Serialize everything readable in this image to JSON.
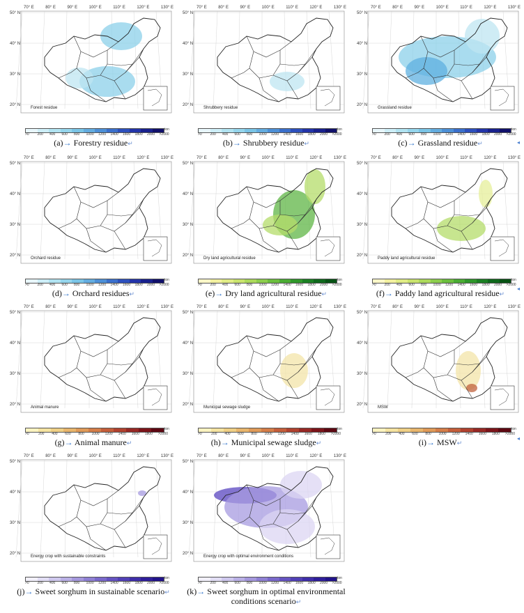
{
  "lon_labels": [
    "70° E",
    "80° E",
    "90° E",
    "100° E",
    "110° E",
    "120° E",
    "130° E"
  ],
  "lat_labels": [
    "50° N",
    "40° N",
    "30° N",
    "20° N"
  ],
  "unit": "ton",
  "ticks_blue": [
    ">0",
    "200",
    "400",
    "600",
    "800",
    "1000",
    "1200",
    "1400",
    "1600",
    "1800",
    "2000",
    ">2000"
  ],
  "ticks_green": [
    ">0",
    "200",
    "400",
    "600",
    "800",
    "1000",
    "1200",
    "1400",
    "1600",
    "1800",
    "2000",
    ">2000"
  ],
  "ticks_red": [
    ">0",
    "200",
    "400",
    "600",
    "800",
    "1000",
    "1200",
    "1400",
    "1600",
    "1800",
    ">2000"
  ],
  "colors_blue": [
    "#e8f6fb",
    "#cdeef7",
    "#b1e3f1",
    "#95d5ec",
    "#7ac4e6",
    "#63acdf",
    "#4c8fd6",
    "#3a6fcb",
    "#2c4fbc",
    "#2233a8",
    "#18208c",
    "#10106a"
  ],
  "colors_green": [
    "#fbf7c8",
    "#f2f0a0",
    "#e0ec86",
    "#c9e36e",
    "#acd95c",
    "#8ccd4d",
    "#6bbe3e",
    "#4aab33",
    "#2f962a",
    "#1b7f23",
    "#0f681c",
    "#075214"
  ],
  "colors_red": [
    "#fbf3c0",
    "#f5e3a0",
    "#efcf85",
    "#e8b56c",
    "#df9a58",
    "#d47d48",
    "#c45e3a",
    "#b0412e",
    "#972824",
    "#7c141a",
    "#5e0812"
  ],
  "colors_purple": [
    "#f2f0fb",
    "#e2def5",
    "#cfc8ee",
    "#bab0e6",
    "#a598dd",
    "#8f80d4",
    "#7a69cb",
    "#6553c1",
    "#5140b6",
    "#3f2ea9",
    "#2f1f9a",
    "#22138a"
  ],
  "panels": [
    {
      "label": "Forest residue",
      "caption": "(a)",
      "title": "Forestry residue",
      "palette": "blue"
    },
    {
      "label": "Shrubbery residue",
      "caption": "(b)",
      "title": "Shrubbery residue",
      "palette": "blue"
    },
    {
      "label": "Grassland residue",
      "caption": "(c)",
      "title": "Grassland residue",
      "palette": "blue"
    },
    {
      "label": "Orchard residue",
      "caption": "(d)",
      "title": "Orchard residues",
      "palette": "blue"
    },
    {
      "label": "Dry land agricultural residue",
      "caption": "(e)",
      "title": "Dry land agricultural residue",
      "palette": "green"
    },
    {
      "label": "Paddy land agricultural residue",
      "caption": "(f)",
      "title": "Paddy land agricultural residue",
      "palette": "green"
    },
    {
      "label": "Animal manure",
      "caption": "(g)",
      "title": "Animal manure",
      "palette": "red"
    },
    {
      "label": "Municipal sewage sludge",
      "caption": "(h)",
      "title": "Municipal sewage sludge",
      "palette": "red"
    },
    {
      "label": "MSW",
      "caption": "(i)",
      "title": "MSW",
      "palette": "red"
    },
    {
      "label": "Energy crop with sustainable constraints",
      "caption": "(j)",
      "title": "Sweet sorghum in sustainable scenario",
      "palette": "purple"
    },
    {
      "label": "Energy crop with optimal environment conditions",
      "caption": "(k)",
      "title": "Sweet sorghum in optimal environmental conditions scenario",
      "palette": "purple"
    }
  ]
}
